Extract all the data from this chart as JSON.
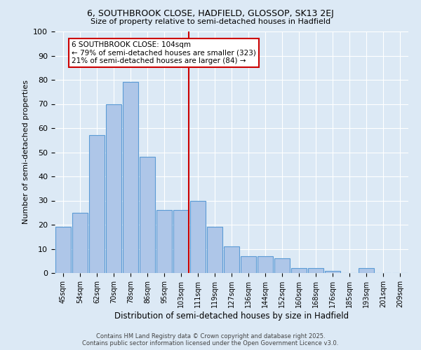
{
  "title": "6, SOUTHBROOK CLOSE, HADFIELD, GLOSSOP, SK13 2EJ",
  "subtitle": "Size of property relative to semi-detached houses in Hadfield",
  "xlabel": "Distribution of semi-detached houses by size in Hadfield",
  "ylabel": "Number of semi-detached properties",
  "categories": [
    "45sqm",
    "54sqm",
    "62sqm",
    "70sqm",
    "78sqm",
    "86sqm",
    "95sqm",
    "103sqm",
    "111sqm",
    "119sqm",
    "127sqm",
    "136sqm",
    "144sqm",
    "152sqm",
    "160sqm",
    "168sqm",
    "176sqm",
    "185sqm",
    "193sqm",
    "201sqm",
    "209sqm"
  ],
  "values": [
    19,
    25,
    57,
    70,
    79,
    48,
    26,
    26,
    30,
    19,
    11,
    7,
    7,
    6,
    2,
    2,
    1,
    0,
    2,
    0,
    0
  ],
  "bar_color": "#aec6e8",
  "bar_edge_color": "#5b9bd5",
  "vline_index": 7,
  "vline_color": "#cc0000",
  "annotation_text": "6 SOUTHBROOK CLOSE: 104sqm\n← 79% of semi-detached houses are smaller (323)\n21% of semi-detached houses are larger (84) →",
  "annotation_box_color": "#ffffff",
  "annotation_box_edge": "#cc0000",
  "background_color": "#dce9f5",
  "ylim": [
    0,
    100
  ],
  "yticks": [
    0,
    10,
    20,
    30,
    40,
    50,
    60,
    70,
    80,
    90,
    100
  ],
  "footer_line1": "Contains HM Land Registry data © Crown copyright and database right 2025.",
  "footer_line2": "Contains public sector information licensed under the Open Government Licence v3.0."
}
